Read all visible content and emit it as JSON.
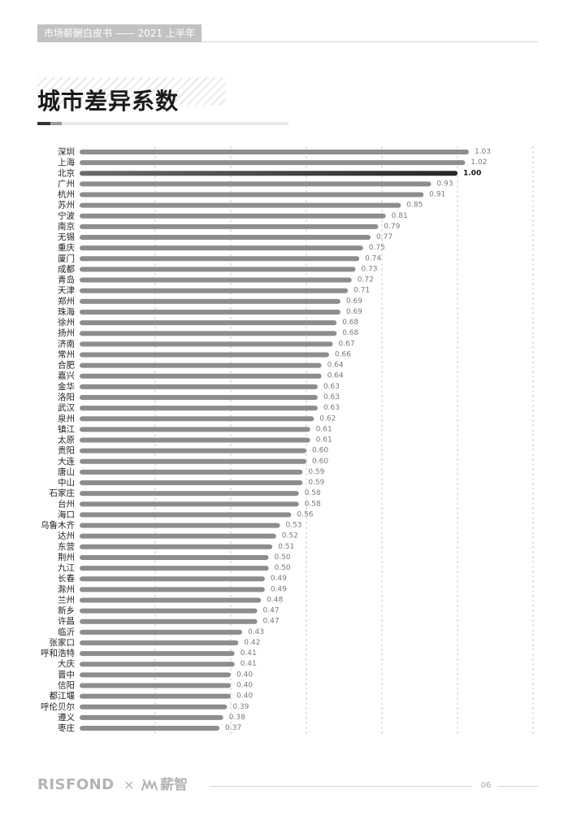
{
  "header": {
    "label": "市场薪酬白皮书 —— 2021 上半年"
  },
  "chart_data": {
    "type": "bar",
    "orientation": "horizontal",
    "title": "城市差异系数",
    "categories": [
      "深圳",
      "上海",
      "北京",
      "广州",
      "杭州",
      "苏州",
      "宁波",
      "南京",
      "无锡",
      "重庆",
      "厦门",
      "成都",
      "青岛",
      "天津",
      "郑州",
      "珠海",
      "徐州",
      "扬州",
      "济南",
      "常州",
      "合肥",
      "嘉兴",
      "金华",
      "洛阳",
      "武汉",
      "泉州",
      "镇江",
      "太原",
      "贵阳",
      "大连",
      "唐山",
      "中山",
      "石家庄",
      "台州",
      "海口",
      "乌鲁木齐",
      "达州",
      "东营",
      "荆州",
      "九江",
      "长春",
      "滁州",
      "兰州",
      "新乡",
      "许昌",
      "临沂",
      "张家口",
      "呼和浩特",
      "大庆",
      "晋中",
      "信阳",
      "都江堰",
      "呼伦贝尔",
      "遵义",
      "枣庄"
    ],
    "values": [
      1.03,
      1.02,
      1.0,
      0.93,
      0.91,
      0.85,
      0.81,
      0.79,
      0.77,
      0.75,
      0.74,
      0.73,
      0.72,
      0.71,
      0.69,
      0.69,
      0.68,
      0.68,
      0.67,
      0.66,
      0.64,
      0.64,
      0.63,
      0.63,
      0.63,
      0.62,
      0.61,
      0.61,
      0.6,
      0.6,
      0.59,
      0.59,
      0.58,
      0.58,
      0.56,
      0.53,
      0.52,
      0.51,
      0.5,
      0.5,
      0.49,
      0.49,
      0.48,
      0.47,
      0.47,
      0.43,
      0.42,
      0.41,
      0.41,
      0.4,
      0.4,
      0.4,
      0.39,
      0.38,
      0.37
    ],
    "xlim": [
      0,
      1.2
    ],
    "grid": true,
    "highlight_index": 2
  },
  "footer": {
    "brand_risfond": "RISFOND",
    "separator": "×",
    "brand_xinzhi": "薪智",
    "page_number": "06"
  },
  "colors": {
    "bar": "#8d8d8d",
    "highlight_bar": "#2e2e2e",
    "grid": "#c9c9c9",
    "category_label": "#222222",
    "value_label": "#7a7a7a",
    "highlight_label": "#111111"
  }
}
